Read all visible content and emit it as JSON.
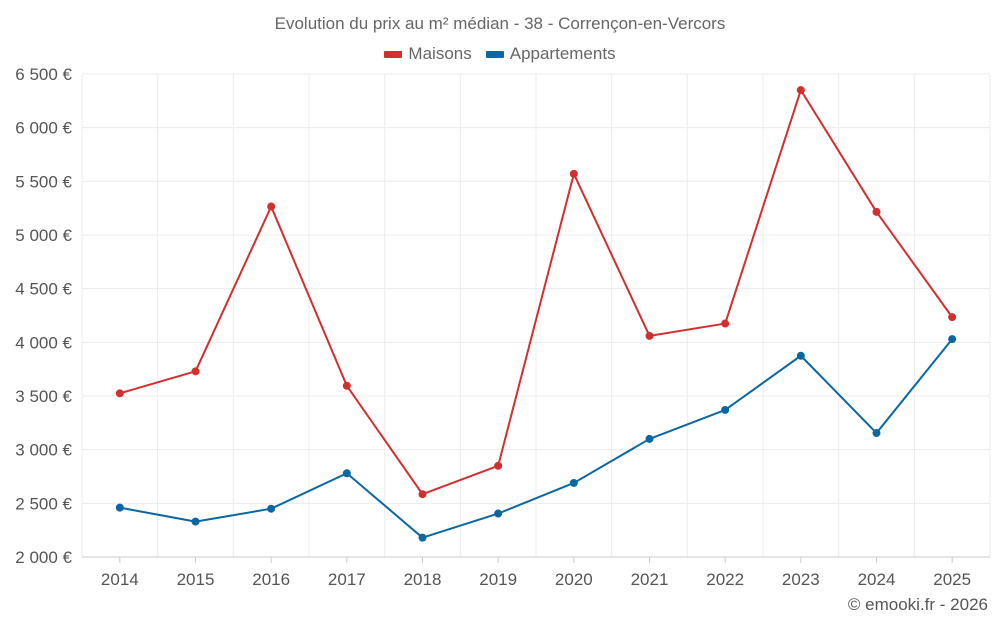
{
  "chart_data": {
    "type": "line",
    "title": "Evolution du prix au m² médian - 38 - Corrençon-en-Vercors",
    "xlabel": "",
    "ylabel": "",
    "categories": [
      "2014",
      "2015",
      "2016",
      "2017",
      "2018",
      "2019",
      "2020",
      "2021",
      "2022",
      "2023",
      "2024",
      "2025"
    ],
    "ylim": [
      2000,
      6500
    ],
    "yticks": [
      2000,
      2500,
      3000,
      3500,
      4000,
      4500,
      5000,
      5500,
      6000,
      6500
    ],
    "ytick_labels": [
      "2 000 €",
      "2 500 €",
      "3 000 €",
      "3 500 €",
      "4 000 €",
      "4 500 €",
      "5 000 €",
      "5 500 €",
      "6 000 €",
      "6 500 €"
    ],
    "legend_position": "top-center",
    "grid": true,
    "series": [
      {
        "name": "Maisons",
        "color": "#d32f2f",
        "values": [
          3525,
          3730,
          5265,
          3595,
          2585,
          2850,
          5570,
          4060,
          4175,
          6350,
          5215,
          4235
        ]
      },
      {
        "name": "Appartements",
        "color": "#0a67a3",
        "values": [
          2460,
          2330,
          2450,
          2780,
          2180,
          2405,
          2690,
          3100,
          3370,
          3875,
          3155,
          4030
        ]
      }
    ]
  },
  "footer": {
    "copyright": "© emooki.fr - 2026"
  }
}
